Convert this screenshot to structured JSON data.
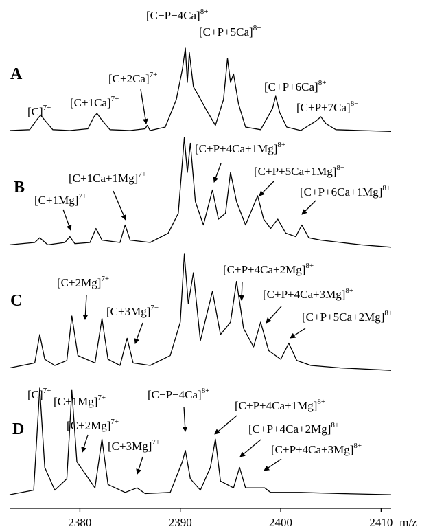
{
  "chart_data": [
    {
      "type": "line",
      "panel_label": "A",
      "xlim": [
        2373,
        2411
      ],
      "ylim": [
        0,
        100
      ],
      "x": [
        2373,
        2375,
        2375.8,
        2376.1,
        2376.5,
        2377.3,
        2379,
        2380.8,
        2381.4,
        2381.7,
        2382.2,
        2383,
        2385,
        2386.5,
        2386.7,
        2387,
        2388.5,
        2389.6,
        2390.2,
        2390.5,
        2390.7,
        2390.9,
        2391.3,
        2391.8,
        2392.5,
        2393.5,
        2394.3,
        2394.7,
        2395,
        2395.3,
        2395.8,
        2396.5,
        2398,
        2399.2,
        2399.5,
        2399.9,
        2400.6,
        2402,
        2403.5,
        2404,
        2404.5,
        2405.5,
        2408,
        2411
      ],
      "series": [
        {
          "color": "#000000",
          "values": [
            4,
            5,
            18,
            22,
            16,
            5,
            4,
            6,
            20,
            24,
            16,
            5,
            4,
            6,
            10,
            4,
            8,
            40,
            75,
            100,
            60,
            95,
            55,
            45,
            30,
            10,
            40,
            88,
            60,
            70,
            35,
            8,
            5,
            30,
            44,
            25,
            8,
            4,
            15,
            20,
            12,
            5,
            4,
            3
          ]
        }
      ],
      "annotations": [
        {
          "text": "[C]",
          "charge": "7+"
        },
        {
          "text": "[C+1Ca]",
          "charge": "7+"
        },
        {
          "text": "[C+2Ca]",
          "charge": "7+"
        },
        {
          "text": "[C−P−4Ca]",
          "charge": "8+"
        },
        {
          "text": "[C+P+5Ca]",
          "charge": "8+"
        },
        {
          "text": "[C+P+6Ca]",
          "charge": "8+"
        },
        {
          "text": "[C+P+7Ca]",
          "charge": "8−"
        }
      ]
    },
    {
      "type": "line",
      "panel_label": "B",
      "xlim": [
        2373,
        2411
      ],
      "ylim": [
        0,
        100
      ],
      "x": [
        2373,
        2375.5,
        2376,
        2376.8,
        2378.5,
        2379,
        2379.5,
        2381,
        2381.6,
        2382.2,
        2384,
        2384.5,
        2385,
        2387,
        2388.8,
        2389.8,
        2390.4,
        2390.7,
        2391,
        2391.5,
        2392.3,
        2393.2,
        2393.8,
        2394.5,
        2395,
        2395.6,
        2396.5,
        2397.7,
        2398.3,
        2399,
        2399.7,
        2400.5,
        2401.5,
        2402.1,
        2402.8,
        2404,
        2406,
        2408,
        2411
      ],
      "series": [
        {
          "color": "#000000",
          "values": [
            8,
            10,
            14,
            8,
            10,
            15,
            9,
            10,
            22,
            12,
            10,
            25,
            12,
            10,
            18,
            35,
            100,
            70,
            95,
            45,
            25,
            55,
            30,
            35,
            70,
            45,
            25,
            50,
            30,
            22,
            30,
            18,
            15,
            25,
            14,
            12,
            10,
            8,
            6
          ]
        }
      ],
      "annotations": [
        {
          "text": "[C+1Mg]",
          "charge": "7+"
        },
        {
          "text": "[C+1Ca+1Mg]",
          "charge": "7+"
        },
        {
          "text": "[C+P+4Ca+1Mg]",
          "charge": "8+"
        },
        {
          "text": "[C+P+5Ca+1Mg]",
          "charge": "8−"
        },
        {
          "text": "[C+P+6Ca+1Mg]",
          "charge": "8+"
        }
      ]
    },
    {
      "type": "line",
      "panel_label": "C",
      "xlim": [
        2373,
        2411
      ],
      "ylim": [
        0,
        100
      ],
      "x": [
        2373,
        2375.5,
        2376,
        2376.5,
        2377.5,
        2378.7,
        2379.2,
        2379.8,
        2381.5,
        2382.2,
        2382.8,
        2384,
        2384.7,
        2385.3,
        2387,
        2389,
        2390,
        2390.4,
        2390.8,
        2391.3,
        2392,
        2393.2,
        2394,
        2395,
        2395.6,
        2396.3,
        2397.3,
        2398,
        2398.8,
        2400,
        2400.8,
        2401.6,
        2403,
        2406,
        2411
      ],
      "series": [
        {
          "color": "#000000",
          "values": [
            8,
            12,
            35,
            15,
            10,
            14,
            50,
            18,
            12,
            48,
            15,
            10,
            32,
            12,
            10,
            18,
            45,
            100,
            60,
            85,
            30,
            70,
            35,
            45,
            78,
            40,
            25,
            45,
            22,
            15,
            28,
            14,
            10,
            8,
            6
          ]
        }
      ],
      "annotations": [
        {
          "text": "[C+2Mg]",
          "charge": "7+"
        },
        {
          "text": "[C+3Mg]",
          "charge": "7−"
        },
        {
          "text": "[C+P+4Ca+2Mg]",
          "charge": "8+"
        },
        {
          "text": "[C+P+4Ca+3Mg]",
          "charge": "8+"
        },
        {
          "text": "[C+P+5Ca+2Mg]",
          "charge": "8+"
        }
      ]
    },
    {
      "type": "line",
      "panel_label": "D",
      "xlim": [
        2373,
        2411
      ],
      "ylim": [
        0,
        100
      ],
      "x": [
        2373,
        2375.4,
        2376,
        2376.5,
        2377.5,
        2378.7,
        2379.2,
        2379.7,
        2381.5,
        2382.2,
        2382.8,
        2384.5,
        2385.7,
        2386.5,
        2389,
        2390.2,
        2390.5,
        2391,
        2392,
        2393,
        2393.5,
        2394,
        2395.3,
        2395.9,
        2396.5,
        2398.4,
        2399,
        2402,
        2406,
        2411
      ],
      "series": [
        {
          "color": "#000000",
          "values": [
            6,
            10,
            100,
            30,
            10,
            20,
            98,
            35,
            12,
            55,
            15,
            8,
            12,
            7,
            8,
            35,
            45,
            20,
            10,
            30,
            55,
            18,
            12,
            30,
            12,
            12,
            8,
            8,
            7,
            6
          ]
        }
      ],
      "annotations": [
        {
          "text": "[C]",
          "charge": "7+"
        },
        {
          "text": "[C+1Mg]",
          "charge": "7+"
        },
        {
          "text": "[C+2Mg]",
          "charge": "7+"
        },
        {
          "text": "[C+3Mg]",
          "charge": "7+"
        },
        {
          "text": "[C−P−4Ca]",
          "charge": "8+"
        },
        {
          "text": "[C+P+4Ca+1Mg]",
          "charge": "8+"
        },
        {
          "text": "[C+P+4Ca+2Mg]",
          "charge": "8+"
        },
        {
          "text": "[C+P+4Ca+3Mg]",
          "charge": "8+"
        }
      ],
      "xticks": [
        2380,
        2390,
        2400,
        2410
      ],
      "xlabel": "m/z"
    }
  ]
}
